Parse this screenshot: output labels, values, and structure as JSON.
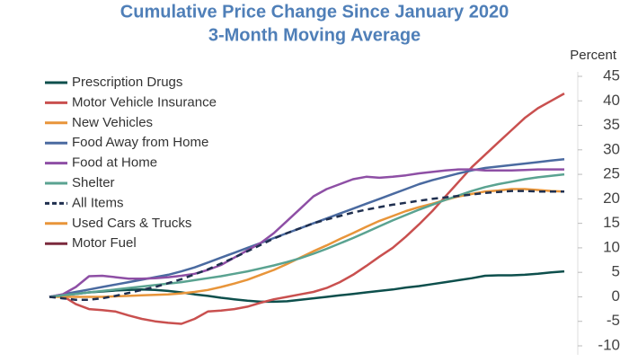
{
  "chart_data": {
    "type": "line",
    "title": "Cumulative Price Change Since January 2020",
    "subtitle": "3-Month Moving Average",
    "y_axis_label": "Percent",
    "categories": [
      null,
      null,
      null,
      null,
      null,
      null,
      null,
      null,
      null,
      null,
      null,
      null,
      null,
      null,
      null,
      null,
      null,
      null,
      null,
      null,
      null,
      null,
      null,
      null,
      null,
      null,
      null,
      null,
      null,
      null,
      null,
      null,
      null,
      null,
      null,
      null,
      null,
      null,
      null,
      null
    ],
    "ylim": [
      -10,
      45
    ],
    "yticks": [
      {
        "value": -10,
        "label": "-10"
      },
      {
        "value": -5,
        "label": "-5"
      },
      0,
      5,
      10,
      15,
      20,
      25,
      30,
      35,
      40,
      45
    ],
    "legend": "upper-left",
    "series": [
      {
        "name": "Prescription Drugs",
        "color": "#0d4f4c",
        "values": [
          0,
          0.3,
          0.6,
          0.9,
          1.1,
          1.3,
          1.4,
          1.5,
          1.4,
          1.2,
          0.9,
          0.5,
          0.2,
          -0.2,
          -0.5,
          -0.8,
          -1,
          -1,
          -0.9,
          -0.6,
          -0.3,
          0,
          0.3,
          0.6,
          0.9,
          1.2,
          1.5,
          1.9,
          2.2,
          2.6,
          3,
          3.4,
          3.8,
          4.3,
          4.4,
          4.4,
          4.5,
          4.7,
          5,
          5.2
        ]
      },
      {
        "name": "Motor Vehicle Insurance",
        "color": "#c9504f",
        "values": [
          0,
          0.2,
          -1.5,
          -2.5,
          -2.7,
          -3,
          -3.8,
          -4.5,
          -5,
          -5.3,
          -5.5,
          -4.5,
          -3,
          -2.8,
          -2.5,
          -2,
          -1.2,
          -0.5,
          0,
          0.5,
          1,
          1.8,
          3,
          4.5,
          6.3,
          8.2,
          10,
          12.3,
          14.8,
          17.5,
          20.5,
          23.5,
          26.5,
          29,
          31.5,
          34,
          36.5,
          38.5,
          40,
          41.5
        ]
      },
      {
        "name": "New Vehicles",
        "color": "#e8953a",
        "values": [
          0,
          0,
          0,
          0,
          0,
          0.1,
          0.2,
          0.3,
          0.4,
          0.5,
          0.7,
          1,
          1.4,
          2,
          2.7,
          3.5,
          4.5,
          5.5,
          6.7,
          8,
          9.3,
          10.5,
          11.8,
          13,
          14.3,
          15.5,
          16.5,
          17.5,
          18.3,
          19,
          19.8,
          20.5,
          21,
          21.5,
          21.7,
          22,
          22,
          21.8,
          21.6,
          21.5
        ]
      },
      {
        "name": "Food Away from Home",
        "color": "#4a6aa0",
        "values": [
          0,
          0.5,
          1,
          1.5,
          2,
          2.5,
          3,
          3.5,
          4,
          4.5,
          5.2,
          6,
          7,
          8,
          9,
          10,
          11,
          12,
          13,
          14,
          15,
          16,
          17,
          18,
          19,
          20,
          21,
          22,
          23,
          23.8,
          24.5,
          25.2,
          25.8,
          26.3,
          26.6,
          26.9,
          27.2,
          27.5,
          27.8,
          28.1
        ]
      },
      {
        "name": "Food at Home",
        "color": "#8e4fa5",
        "values": [
          0,
          0.5,
          2,
          4.2,
          4.3,
          4,
          3.7,
          3.7,
          3.8,
          4,
          4.3,
          4.7,
          5.5,
          6.5,
          8,
          9.5,
          11,
          13,
          15.5,
          18,
          20.5,
          22,
          23,
          24,
          24.5,
          24.3,
          24.5,
          24.8,
          25.2,
          25.5,
          25.8,
          26,
          26,
          25.8,
          25.8,
          25.8,
          25.9,
          26,
          26,
          26
        ]
      },
      {
        "name": "Shelter",
        "color": "#5aa391",
        "values": [
          0,
          0.3,
          0.6,
          0.9,
          1.2,
          1.5,
          1.8,
          2.1,
          2.4,
          2.7,
          3,
          3.4,
          3.8,
          4.2,
          4.7,
          5.2,
          5.8,
          6.4,
          7.1,
          7.9,
          8.8,
          9.8,
          10.9,
          12,
          13.2,
          14.4,
          15.6,
          16.7,
          17.8,
          18.8,
          19.8,
          20.7,
          21.6,
          22.4,
          23,
          23.5,
          24,
          24.4,
          24.7,
          25
        ]
      },
      {
        "name": "All Items",
        "color": "#1f2f4f",
        "dashed": true,
        "values": [
          0,
          -0.3,
          -0.6,
          -0.6,
          -0.3,
          0.2,
          0.8,
          1.4,
          2,
          2.8,
          3.6,
          4.6,
          5.6,
          6.8,
          8,
          9.3,
          10.6,
          11.9,
          13,
          14,
          15,
          15.8,
          16.5,
          17.2,
          17.8,
          18.3,
          18.8,
          19.2,
          19.6,
          20,
          20.3,
          20.6,
          20.9,
          21.2,
          21.4,
          21.6,
          21.6,
          21.5,
          21.5,
          21.5
        ]
      },
      {
        "name": "Used Cars & Trucks",
        "color": "#e8953a",
        "values": [
          null,
          null,
          null,
          null,
          null,
          null,
          null,
          null,
          null,
          null,
          null,
          null,
          null,
          null,
          null,
          null,
          null,
          null,
          null,
          null,
          null,
          null,
          null,
          null,
          null,
          null,
          null,
          null,
          null,
          null,
          null,
          null,
          null,
          null,
          null,
          null,
          null,
          null,
          null,
          null
        ]
      },
      {
        "name": "Motor Fuel",
        "color": "#7b2a3d",
        "values": [
          null,
          null,
          null,
          null,
          null,
          null,
          null,
          null,
          null,
          null,
          null,
          null,
          null,
          null,
          null,
          null,
          null,
          null,
          null,
          null,
          null,
          null,
          null,
          null,
          null,
          null,
          null,
          null,
          null,
          null,
          null,
          null,
          null,
          null,
          null,
          null,
          null,
          null,
          null,
          null
        ]
      }
    ]
  }
}
